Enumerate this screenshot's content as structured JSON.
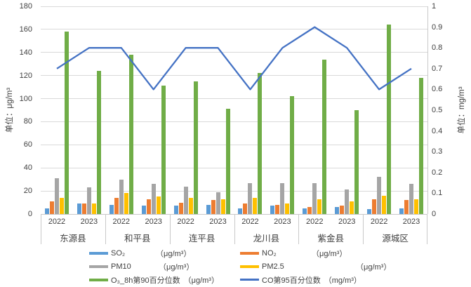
{
  "chart_data": {
    "type": "bar",
    "subtype": "grouped-bar-with-line-dual-axis",
    "title": "",
    "counties": [
      "东源县",
      "和平县",
      "连平县",
      "龙川县",
      "紫金县",
      "源城区"
    ],
    "years": [
      "2022",
      "2023"
    ],
    "columns": [
      "东源县2022",
      "东源县2023",
      "和平县2022",
      "和平县2023",
      "连平县2022",
      "连平县2023",
      "龙川县2022",
      "龙川县2023",
      "紫金县2022",
      "紫金县2023",
      "源城区2022",
      "源城区2023"
    ],
    "series": [
      {
        "name": "SO₂",
        "unit": "（μg/m³）",
        "type": "bar",
        "axis": "left",
        "color": "#5B9BD5",
        "values": [
          5,
          9,
          8,
          7,
          7,
          8,
          5,
          7,
          5,
          6,
          4,
          5
        ]
      },
      {
        "name": "NO₂",
        "unit": "（μg/m³）",
        "type": "bar",
        "axis": "left",
        "color": "#ED7D31",
        "values": [
          11,
          9,
          14,
          13,
          10,
          12,
          9,
          8,
          6,
          7,
          13,
          12
        ]
      },
      {
        "name": "PM10",
        "unit": "（μg/m³）",
        "type": "bar",
        "axis": "left",
        "color": "#A5A5A5",
        "values": [
          31,
          23,
          30,
          26,
          24,
          19,
          27,
          27,
          27,
          21,
          32,
          26
        ]
      },
      {
        "name": "PM2.5",
        "unit": "（μg/m³）",
        "type": "bar",
        "axis": "left",
        "color": "#FFC000",
        "values": [
          14,
          9,
          18,
          15,
          14,
          13,
          14,
          9,
          13,
          11,
          16,
          13
        ]
      },
      {
        "name": "O₃_8h第90百分位数",
        "unit": "（μg/m³）",
        "type": "bar",
        "axis": "left",
        "color": "#70AD47",
        "values": [
          158,
          124,
          138,
          111,
          115,
          91,
          122,
          102,
          134,
          90,
          164,
          118
        ]
      },
      {
        "name": "CO第95百分位数",
        "unit": "（mg/m³）",
        "type": "line",
        "axis": "right",
        "color": "#4472C4",
        "values": [
          0.7,
          0.8,
          0.8,
          0.6,
          0.8,
          0.8,
          0.6,
          0.8,
          0.9,
          0.8,
          0.6,
          0.7
        ]
      }
    ],
    "left_axis": {
      "title": "单位：μg/m³",
      "min": 0,
      "max": 180,
      "step": 20,
      "ticks": [
        "0",
        "20",
        "40",
        "60",
        "80",
        "100",
        "120",
        "140",
        "160",
        "180"
      ]
    },
    "right_axis": {
      "title": "单位：mg/m³",
      "min": 0,
      "max": 1,
      "step": 0.1,
      "ticks": [
        "0",
        "0.1",
        "0.2",
        "0.3",
        "0.4",
        "0.5",
        "0.6",
        "0.7",
        "0.8",
        "0.9",
        "1"
      ]
    },
    "legend_position": "bottom",
    "grid": true,
    "colors": {
      "gridline": "#D9D9D9",
      "axis_line": "#C9C9C9",
      "text": "#404040"
    }
  }
}
